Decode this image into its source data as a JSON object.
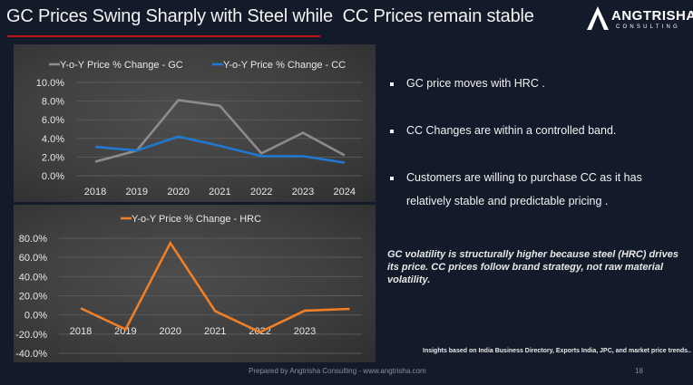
{
  "slide": {
    "title": "GC Prices Swing Sharply with Steel while  CC Prices remain stable",
    "accent_color": "#c0121b",
    "logo": {
      "name": "ANGTRISHA",
      "subtitle": "CONSULTING"
    },
    "bullets": [
      {
        "icon": "square-bullet",
        "text": " GC price moves with HRC ."
      },
      {
        "icon": "square-bullet",
        "text": "CC Changes are within a controlled band."
      },
      {
        "icon": "square-bullet",
        "text": "Customers are willing to purchase CC as it has",
        "text2": "relatively stable and predictable pricing  ."
      }
    ],
    "note": "GC volatility is structurally higher because steel (HRC) drives its price. CC prices follow brand strategy, not raw material volatility.",
    "source": "Insights based on India Business Directory, Exports India, JPC, and market price trends..",
    "footer": "Prepared by Angtrisha Consulting - www.angtrisha.com",
    "page_number": "18"
  },
  "chart_data": [
    {
      "type": "line",
      "title": "",
      "categories": [
        "2018",
        "2019",
        "2020",
        "2021",
        "2022",
        "2023",
        "2024"
      ],
      "series": [
        {
          "name": "Y-o-Y Price % Change - GC",
          "color": "#8c8c8c",
          "values": [
            1.5,
            2.7,
            8.1,
            7.5,
            2.4,
            4.6,
            2.2
          ]
        },
        {
          "name": "Y-o-Y Price % Change - CC",
          "color": "#1f78d1",
          "values": [
            3.1,
            2.7,
            4.2,
            3.2,
            2.1,
            2.1,
            1.4
          ]
        }
      ],
      "ylim": [
        0,
        10
      ],
      "yticks": [
        "0.0%",
        "2.0%",
        "4.0%",
        "6.0%",
        "8.0%",
        "10.0%"
      ],
      "ytick_values": [
        0,
        2,
        4,
        6,
        8,
        10
      ],
      "xlabel": "",
      "ylabel": "",
      "grid": true,
      "legend": "top"
    },
    {
      "type": "line",
      "title": "",
      "categories": [
        "2018",
        "2019",
        "2020",
        "2021",
        "2022",
        "2023",
        ""
      ],
      "series": [
        {
          "name": "Y-o-Y Price % Change - HRC",
          "color": "#f07f26",
          "values": [
            7,
            -15,
            75,
            4,
            -18,
            4.5,
            6.3
          ]
        }
      ],
      "ylim": [
        -40,
        80
      ],
      "yticks": [
        "-40.0%",
        "-20.0%",
        "0.0%",
        "20.0%",
        "40.0%",
        "60.0%",
        "80.0%"
      ],
      "ytick_values": [
        -40,
        -20,
        0,
        20,
        40,
        60,
        80
      ],
      "xlabel": "",
      "ylabel": "",
      "grid": true,
      "legend": "top"
    }
  ]
}
